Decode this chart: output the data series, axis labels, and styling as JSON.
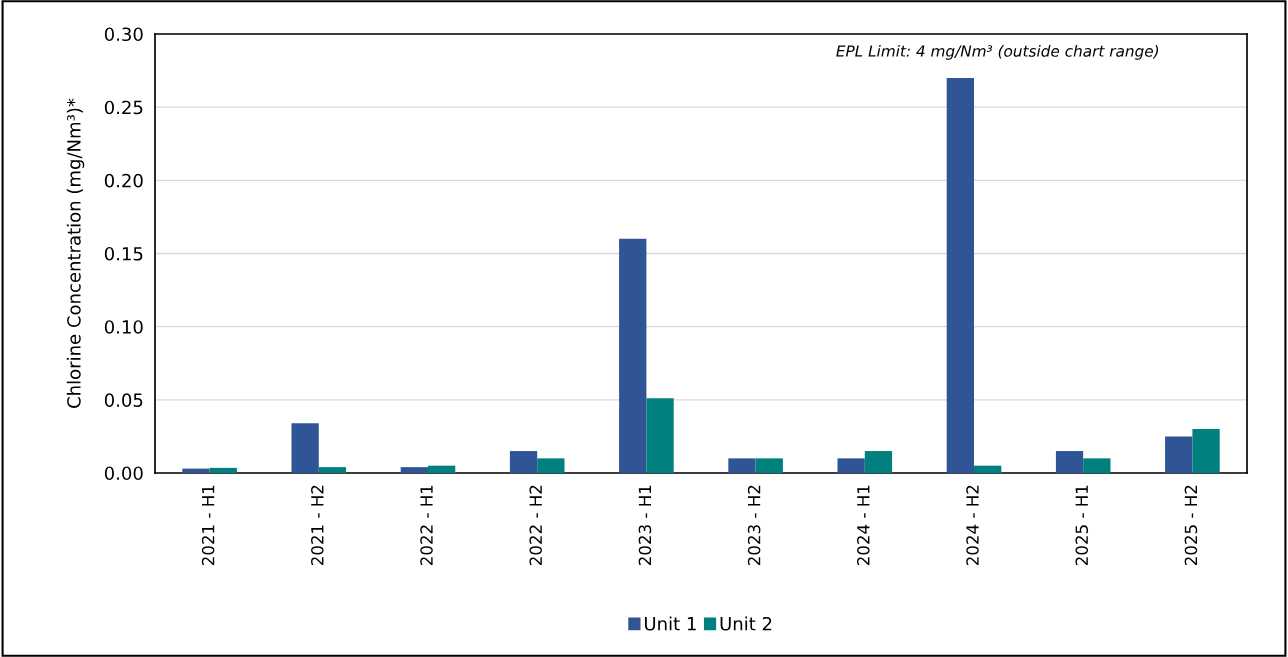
{
  "chart_data": {
    "type": "bar",
    "ylabel": "Chlorine Concentration (mg/Nm³)*",
    "categories": [
      "2021 - H1",
      "2021 - H2",
      "2022 - H1",
      "2022 - H2",
      "2023 - H1",
      "2023 - H2",
      "2024 - H1",
      "2024 - H2",
      "2025 - H1",
      "2025 - H2"
    ],
    "series": [
      {
        "name": "Unit 1",
        "color": "#2f5597",
        "values": [
          0.003,
          0.034,
          0.004,
          0.015,
          0.16,
          0.01,
          0.01,
          0.27,
          0.015,
          0.025
        ]
      },
      {
        "name": "Unit 2",
        "color": "#00807f",
        "values": [
          0.0035,
          0.004,
          0.005,
          0.01,
          0.051,
          0.01,
          0.015,
          0.005,
          0.01,
          0.03
        ]
      }
    ],
    "ylim": [
      0,
      0.3
    ],
    "yticks": [
      {
        "value": 0,
        "label": "0.00"
      },
      {
        "value": 0.05,
        "label": "0.05"
      },
      {
        "value": 0.1,
        "label": "0.10"
      },
      {
        "value": 0.15,
        "label": "0.15"
      },
      {
        "value": 0.2,
        "label": "0.20"
      },
      {
        "value": 0.25,
        "label": "0.25"
      },
      {
        "value": 0.3,
        "label": "0.30"
      }
    ],
    "annotations": [
      "EPL Limit: 4 mg/Nm³ (outside chart range)"
    ],
    "grid": "y",
    "legend": "bottom"
  }
}
